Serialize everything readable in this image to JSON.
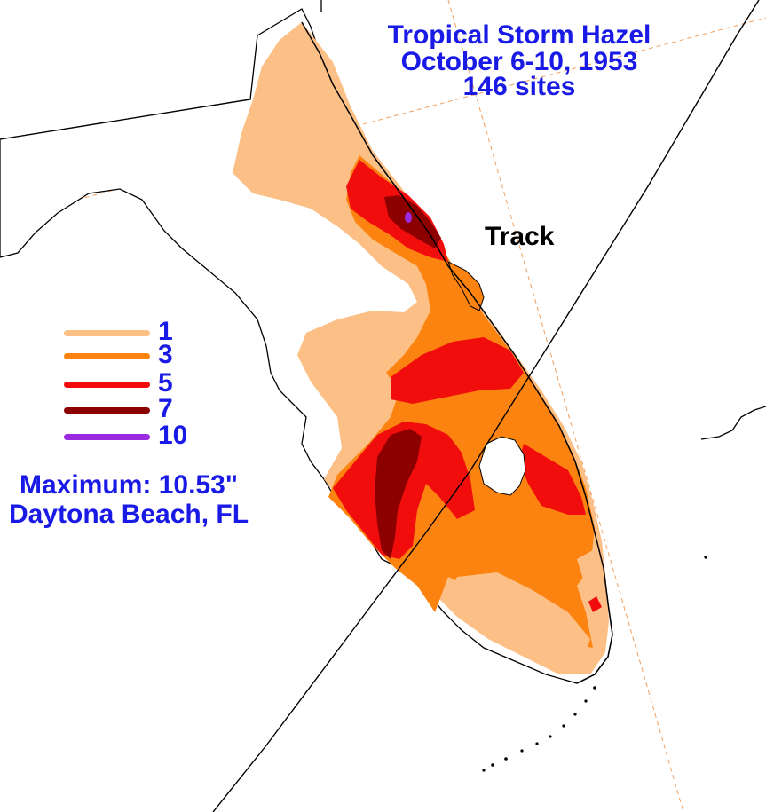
{
  "title": {
    "line1": "Tropical Storm Hazel",
    "line2": "October 6-10, 1953",
    "line3": "146 sites"
  },
  "track_label": "Track",
  "legend": [
    {
      "value": "1",
      "color": "#fcbf85"
    },
    {
      "value": "3",
      "color": "#fc8310"
    },
    {
      "value": "5",
      "color": "#f20d0d"
    },
    {
      "value": "7",
      "color": "#8c0000"
    },
    {
      "value": "10",
      "color": "#9b2be2"
    }
  ],
  "maximum": {
    "label": "Maximum: 10.53\"",
    "location": "Daytona Beach, FL"
  },
  "colors": {
    "text": "#1a1ae6",
    "grid": "#f0a060",
    "coast": "#000000"
  }
}
